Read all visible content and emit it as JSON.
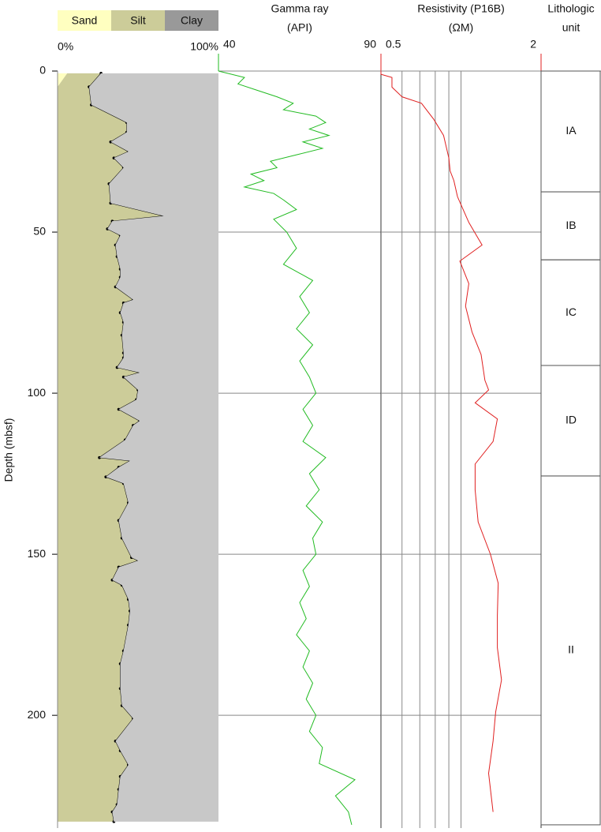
{
  "chart_data": [
    {
      "type": "grain-size",
      "ylabel": "Depth (mbsf)",
      "ylim": [
        0,
        235
      ],
      "yticks": [
        0,
        50,
        100,
        150,
        200
      ],
      "xlim": [
        0,
        100
      ],
      "xticks": [
        {
          "value": 0,
          "label": "0%"
        },
        {
          "value": 100,
          "label": "100%"
        }
      ],
      "depth": [
        0.7,
        4.9,
        10.5,
        16,
        19,
        22,
        25,
        27,
        30,
        35,
        41,
        45,
        46.6,
        49,
        51,
        54,
        57.6,
        61.5,
        64,
        67,
        71,
        72,
        75,
        78,
        82,
        87.5,
        89,
        92,
        93.6,
        95,
        99,
        102,
        105,
        108.6,
        110,
        114.5,
        120,
        121,
        123,
        126,
        128,
        134,
        139.5,
        145,
        151,
        152,
        154,
        158,
        159.6,
        164,
        167.6,
        172,
        180,
        184,
        191.7,
        197,
        201,
        208,
        211,
        215.4,
        219,
        223,
        227.7,
        230,
        233
      ],
      "series": [
        {
          "name": "Sand",
          "color": "#ffffc0",
          "values": [
            6,
            0,
            0,
            0,
            0,
            0,
            0,
            0,
            0,
            0,
            0,
            0,
            0,
            0,
            0,
            0,
            0,
            0,
            0,
            0,
            0,
            0,
            0,
            0,
            0,
            0,
            0,
            0,
            0,
            0,
            0,
            0,
            0,
            0,
            0,
            0,
            0,
            0,
            0,
            0,
            0,
            0,
            0,
            0,
            0,
            0,
            0,
            0,
            0,
            0,
            0,
            0,
            0,
            0,
            0,
            0,
            0,
            0,
            0,
            0,
            0,
            0,
            0,
            0,
            0
          ]
        },
        {
          "name": "Silt",
          "color": "#cccc99",
          "values": [
            21,
            19.6,
            21,
            43,
            43,
            33,
            44,
            35,
            41,
            32,
            33,
            66,
            34,
            31,
            39,
            36,
            37,
            39,
            39,
            36,
            47,
            41,
            39,
            41,
            40,
            41,
            41,
            37,
            51,
            41,
            50,
            49,
            38,
            51,
            47,
            42,
            26,
            45,
            38,
            30,
            41,
            44,
            38,
            40,
            46,
            50,
            38,
            34,
            40,
            44,
            45,
            44,
            41,
            39,
            39,
            40,
            47,
            36,
            39,
            44,
            39,
            38,
            37,
            34,
            35
          ]
        },
        {
          "name": "Clay",
          "color": "#c8c8c8",
          "values": [
            73,
            80.4,
            79,
            57,
            57,
            67,
            56,
            65,
            59,
            68,
            67,
            34,
            66,
            69,
            61,
            64,
            63,
            61,
            61,
            64,
            53,
            59,
            61,
            59,
            60,
            59,
            59,
            63,
            49,
            59,
            50,
            51,
            62,
            49,
            53,
            58,
            74,
            55,
            62,
            70,
            59,
            56,
            62,
            60,
            54,
            50,
            62,
            66,
            60,
            56,
            55,
            56,
            59,
            61,
            61,
            60,
            53,
            64,
            61,
            56,
            61,
            62,
            63,
            66,
            65
          ]
        }
      ]
    },
    {
      "type": "log",
      "title": [
        "Gamma ray",
        "(API)"
      ],
      "color": "#22bb22",
      "ylim": [
        0,
        235
      ],
      "ygrid": [
        50,
        100,
        150,
        200
      ],
      "xlim": [
        40,
        90
      ],
      "xticks": [
        40,
        90
      ],
      "depth": [
        0,
        2,
        4,
        6,
        8,
        10,
        12,
        14,
        16,
        18,
        20,
        22,
        24,
        26,
        28,
        30,
        32,
        34,
        36,
        38,
        40,
        43,
        46,
        50,
        55,
        60,
        65,
        70,
        75,
        80,
        85,
        90,
        95,
        100,
        105,
        110,
        115,
        120,
        125,
        130,
        135,
        140,
        145,
        150,
        155,
        160,
        165,
        170,
        175,
        180,
        185,
        190,
        195,
        200,
        205,
        210,
        215,
        220,
        225,
        230,
        234
      ],
      "values": [
        40,
        48,
        46,
        52,
        58,
        63,
        60,
        70,
        73,
        68,
        74,
        66,
        72,
        64,
        56,
        58,
        50,
        54,
        48,
        57,
        60,
        64,
        57,
        61,
        64,
        60,
        69,
        65,
        68,
        64,
        69,
        65,
        68,
        70,
        66,
        69,
        66,
        73,
        68,
        71,
        67,
        72,
        69,
        70,
        66,
        68,
        65,
        67,
        64,
        68,
        66,
        69,
        67,
        70,
        68,
        72,
        71,
        82,
        76,
        80,
        81
      ]
    },
    {
      "type": "log",
      "title": [
        "Resistivity (P16B)",
        "(ΩM)"
      ],
      "color": "#e02020",
      "log": true,
      "ylim": [
        0,
        235
      ],
      "ygrid": [
        50,
        100,
        150,
        200
      ],
      "xlim": [
        0.5,
        2
      ],
      "xticks": [
        0.5,
        2
      ],
      "xgrid": [
        0.6,
        0.7,
        0.8,
        0.9,
        1
      ],
      "depth": [
        0,
        1,
        2,
        5,
        8,
        10,
        15,
        20,
        27,
        31,
        34,
        39,
        47,
        54,
        59,
        66,
        73,
        81,
        88,
        96,
        99,
        103,
        108,
        115,
        122,
        130,
        140,
        150,
        159,
        169,
        179,
        189,
        199,
        208,
        218,
        230
      ],
      "values": [
        0.5,
        0.5,
        0.55,
        0.55,
        0.6,
        0.71,
        0.79,
        0.86,
        0.9,
        0.91,
        0.94,
        0.97,
        1.07,
        1.2,
        0.99,
        1.07,
        1.04,
        1.1,
        1.19,
        1.23,
        1.27,
        1.13,
        1.37,
        1.32,
        1.13,
        1.13,
        1.16,
        1.29,
        1.38,
        1.37,
        1.37,
        1.42,
        1.35,
        1.32,
        1.27,
        1.32
      ]
    },
    {
      "type": "units",
      "title": [
        "Lithologic",
        "unit"
      ],
      "ylim": [
        0,
        235
      ],
      "units": [
        {
          "name": "IA",
          "top": 0,
          "bottom": 37.5
        },
        {
          "name": "IB",
          "top": 37.5,
          "bottom": 58.6
        },
        {
          "name": "IC",
          "top": 58.6,
          "bottom": 91.4
        },
        {
          "name": "ID",
          "top": 91.4,
          "bottom": 125.7
        },
        {
          "name": "II",
          "top": 125.7,
          "bottom": 234
        }
      ]
    }
  ]
}
